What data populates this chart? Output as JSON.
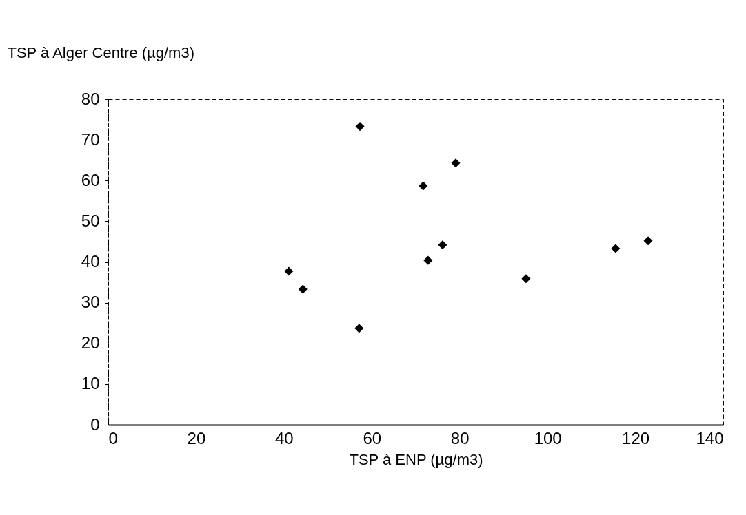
{
  "chart_data": {
    "type": "scatter",
    "xlabel": "TSP à ENP (µg/m3)",
    "ylabel": "TSP à Alger Centre (µg/m3)",
    "x": [
      41.1,
      44.3,
      57.1,
      57.3,
      71.7,
      79.1,
      76.1,
      72.8,
      95.1,
      115.5,
      122.9
    ],
    "series": [
      {
        "color": "#000000",
        "values": [
          37.7,
          33.3,
          23.7,
          73.3,
          58.7,
          64.3,
          44.2,
          40.4,
          35.9,
          43.3,
          45.2
        ]
      }
    ],
    "xlim": [
      0,
      140
    ],
    "xticks": [
      0,
      20,
      40,
      60,
      80,
      100,
      120,
      140
    ],
    "ylim": [
      0,
      80
    ],
    "yticks": [
      0,
      10,
      20,
      30,
      40,
      50,
      60,
      70,
      80
    ],
    "marker": "diamond",
    "grid": false
  }
}
